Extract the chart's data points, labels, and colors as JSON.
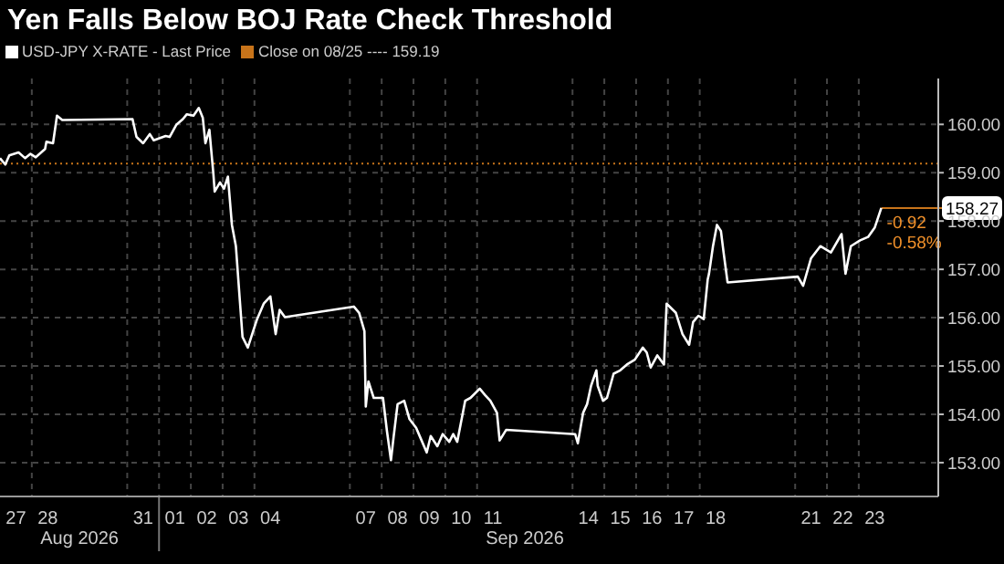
{
  "chart_data": {
    "type": "line",
    "title": "Yen Falls Below BOJ Rate Check Threshold",
    "x": [
      "2026-08-27T00:00",
      "2026-08-27T04:00",
      "2026-08-27T07:00",
      "2026-08-27T14:00",
      "2026-08-27T19:00",
      "2026-08-27T23:00",
      "2026-08-28T03:00",
      "2026-08-28T10:00",
      "2026-08-28T11:00",
      "2026-08-28T16:00",
      "2026-08-28T19:00",
      "2026-08-28T23:00",
      "2026-08-31T04:00",
      "2026-08-31T07:00",
      "2026-08-31T12:00",
      "2026-08-31T17:00",
      "2026-08-31T20:00",
      "2026-09-01T05:00",
      "2026-09-01T08:00",
      "2026-09-01T13:00",
      "2026-09-01T18:00",
      "2026-09-01T21:00",
      "2026-09-02T02:00",
      "2026-09-02T06:00",
      "2026-09-02T09:00",
      "2026-09-02T11:00",
      "2026-09-02T14:00",
      "2026-09-02T17:00",
      "2026-09-02T18:00",
      "2026-09-02T22:00",
      "2026-09-03T01:00",
      "2026-09-03T04:00",
      "2026-09-03T07:00",
      "2026-09-03T10:00",
      "2026-09-03T13:00",
      "2026-09-03T15:00",
      "2026-09-03T19:00",
      "2026-09-03T23:00",
      "2026-09-04T02:00",
      "2026-09-04T07:00",
      "2026-09-04T12:00",
      "2026-09-04T16:00",
      "2026-09-04T19:00",
      "2026-09-04T23:00",
      "2026-09-07T03:00",
      "2026-09-07T07:00",
      "2026-09-07T11:00",
      "2026-09-07T12:00",
      "2026-09-07T14:00",
      "2026-09-07T18:00",
      "2026-09-08T01:00",
      "2026-09-08T04:00",
      "2026-09-08T07:00",
      "2026-09-08T09:00",
      "2026-09-08T12:00",
      "2026-09-08T17:00",
      "2026-09-08T21:00",
      "2026-09-09T02:00",
      "2026-09-09T05:00",
      "2026-09-09T10:00",
      "2026-09-09T13:00",
      "2026-09-09T18:00",
      "2026-09-09T22:00",
      "2026-09-10T03:00",
      "2026-09-10T06:00",
      "2026-09-10T09:00",
      "2026-09-10T15:00",
      "2026-09-10T19:00",
      "2026-09-11T02:00",
      "2026-09-11T06:00",
      "2026-09-11T10:00",
      "2026-09-11T15:00",
      "2026-09-11T17:00",
      "2026-09-11T22:00",
      "2026-09-14T02:00",
      "2026-09-14T04:00",
      "2026-09-14T08:00",
      "2026-09-14T11:00",
      "2026-09-14T14:00",
      "2026-09-14T18:00",
      "2026-09-14T19:00",
      "2026-09-14T23:00",
      "2026-09-15T02:00",
      "2026-09-15T07:00",
      "2026-09-15T12:00",
      "2026-09-15T17:00",
      "2026-09-15T23:00",
      "2026-09-16T05:00",
      "2026-09-16T08:00",
      "2026-09-16T11:00",
      "2026-09-16T16:00",
      "2026-09-16T21:00",
      "2026-09-16T23:00",
      "2026-09-17T06:00",
      "2026-09-17T11:00",
      "2026-09-17T16:00",
      "2026-09-17T19:00",
      "2026-09-17T23:00",
      "2026-09-18T03:00",
      "2026-09-18T06:00",
      "2026-09-18T07:00",
      "2026-09-18T10:00",
      "2026-09-18T13:00",
      "2026-09-18T16:00",
      "2026-09-18T18:00",
      "2026-09-18T21:00",
      "2026-09-21T02:00",
      "2026-09-21T06:00",
      "2026-09-21T12:00",
      "2026-09-21T19:00",
      "2026-09-22T03:00",
      "2026-09-22T11:00",
      "2026-09-22T14:00",
      "2026-09-22T18:00",
      "2026-09-23T01:00",
      "2026-09-23T07:00",
      "2026-09-23T12:00",
      "2026-09-23T17:00"
    ],
    "series": [
      {
        "name": "USD-JPY X-RATE - Last Price",
        "color": "#ffffff",
        "values": [
          159.3,
          159.17,
          159.36,
          159.42,
          159.3,
          159.39,
          159.32,
          159.49,
          159.64,
          159.61,
          160.18,
          160.09,
          160.11,
          159.74,
          159.61,
          159.8,
          159.67,
          159.76,
          159.74,
          159.99,
          160.11,
          160.21,
          160.18,
          160.34,
          160.14,
          159.61,
          159.89,
          158.98,
          158.61,
          158.8,
          158.67,
          158.92,
          157.92,
          157.48,
          156.35,
          155.6,
          155.38,
          155.72,
          155.97,
          156.29,
          156.44,
          155.66,
          156.16,
          156.01,
          156.23,
          156.1,
          155.72,
          154.16,
          154.68,
          154.34,
          154.34,
          153.65,
          153.05,
          153.53,
          154.21,
          154.28,
          153.9,
          153.72,
          153.53,
          153.21,
          153.55,
          153.34,
          153.59,
          153.43,
          153.59,
          153.43,
          154.28,
          154.34,
          154.53,
          154.4,
          154.28,
          154.03,
          153.46,
          153.68,
          153.59,
          153.4,
          154.03,
          154.21,
          154.59,
          154.91,
          154.59,
          154.28,
          154.34,
          154.84,
          154.91,
          155.03,
          155.13,
          155.38,
          155.28,
          154.97,
          155.22,
          155.03,
          156.29,
          156.1,
          155.66,
          155.44,
          155.91,
          156.04,
          155.97,
          156.79,
          156.91,
          157.48,
          157.92,
          157.79,
          157.35,
          156.73,
          156.85,
          156.66,
          157.23,
          157.48,
          157.35,
          157.73,
          156.91,
          157.48,
          157.6,
          157.67,
          157.86,
          158.27
        ],
        "value_labels": [
          null,
          null,
          null,
          null,
          null,
          null,
          null,
          null,
          null,
          null,
          null,
          null,
          null,
          null,
          null,
          null,
          null,
          null,
          null,
          null,
          null,
          null,
          null,
          null,
          null,
          null,
          null,
          null,
          null,
          null,
          null,
          null,
          null,
          null,
          null,
          null,
          null,
          null,
          null,
          null,
          null,
          null,
          null,
          null,
          null,
          null,
          null,
          null,
          null,
          null,
          null,
          null,
          null,
          null,
          null,
          null,
          null,
          null,
          null,
          null,
          null,
          null,
          null,
          null,
          null,
          null,
          null,
          null,
          null,
          null,
          null,
          null,
          null,
          null,
          null,
          null,
          null,
          null,
          null,
          null,
          null,
          null,
          null,
          null,
          null,
          null,
          null,
          null,
          null,
          null,
          null,
          null,
          null,
          null,
          null,
          null,
          null,
          null,
          null,
          null,
          null,
          null,
          null,
          null,
          null,
          null,
          null,
          null,
          null,
          null,
          null,
          null,
          null,
          null,
          null,
          null,
          null,
          "158.27"
        ]
      }
    ],
    "xlim": [
      "2026-08-27T00:00",
      "2026-09-25T12:00"
    ],
    "xticks": [
      {
        "value": "2026-08-27T12:00",
        "label": "27"
      },
      {
        "value": "2026-08-28T00:00",
        "label": null
      },
      {
        "value": "2026-08-28T12:00",
        "label": "28"
      },
      {
        "value": "2026-08-31T00:00",
        "label": null
      },
      {
        "value": "2026-08-31T12:00",
        "label": "31"
      },
      {
        "value": "2026-09-01T00:00",
        "label": null
      },
      {
        "value": "2026-09-01T12:00",
        "label": "01"
      },
      {
        "value": "2026-09-02T00:00",
        "label": null
      },
      {
        "value": "2026-09-02T12:00",
        "label": "02"
      },
      {
        "value": "2026-09-03T00:00",
        "label": null
      },
      {
        "value": "2026-09-03T12:00",
        "label": "03"
      },
      {
        "value": "2026-09-04T00:00",
        "label": null
      },
      {
        "value": "2026-09-04T12:00",
        "label": "04"
      },
      {
        "value": "2026-09-07T00:00",
        "label": null
      },
      {
        "value": "2026-09-07T12:00",
        "label": "07"
      },
      {
        "value": "2026-09-08T00:00",
        "label": null
      },
      {
        "value": "2026-09-08T12:00",
        "label": "08"
      },
      {
        "value": "2026-09-09T00:00",
        "label": null
      },
      {
        "value": "2026-09-09T12:00",
        "label": "09"
      },
      {
        "value": "2026-09-10T00:00",
        "label": null
      },
      {
        "value": "2026-09-10T12:00",
        "label": "10"
      },
      {
        "value": "2026-09-11T00:00",
        "label": null
      },
      {
        "value": "2026-09-11T12:00",
        "label": "11"
      },
      {
        "value": "2026-09-14T00:00",
        "label": null
      },
      {
        "value": "2026-09-14T12:00",
        "label": "14"
      },
      {
        "value": "2026-09-15T00:00",
        "label": null
      },
      {
        "value": "2026-09-15T12:00",
        "label": "15"
      },
      {
        "value": "2026-09-16T00:00",
        "label": null
      },
      {
        "value": "2026-09-16T12:00",
        "label": "16"
      },
      {
        "value": "2026-09-17T00:00",
        "label": null
      },
      {
        "value": "2026-09-17T12:00",
        "label": "17"
      },
      {
        "value": "2026-09-18T00:00",
        "label": null
      },
      {
        "value": "2026-09-18T12:00",
        "label": "18"
      },
      {
        "value": "2026-09-21T00:00",
        "label": null
      },
      {
        "value": "2026-09-21T12:00",
        "label": "21"
      },
      {
        "value": "2026-09-22T00:00",
        "label": null
      },
      {
        "value": "2026-09-22T12:00",
        "label": "22"
      },
      {
        "value": "2026-09-23T00:00",
        "label": null
      },
      {
        "value": "2026-09-23T12:00",
        "label": "23"
      }
    ],
    "ylim": [
      152.3,
      160.95
    ],
    "yticks": [
      {
        "value": 153,
        "label": "153.00"
      },
      {
        "value": 154,
        "label": "154.00"
      },
      {
        "value": 155,
        "label": "155.00"
      },
      {
        "value": 156,
        "label": "156.00"
      },
      {
        "value": 157,
        "label": "157.00"
      },
      {
        "value": 158,
        "label": "158.00"
      },
      {
        "value": 159,
        "label": "159.00"
      },
      {
        "value": 160,
        "label": "160.00"
      }
    ],
    "ref_lines": [
      {
        "axis": "y",
        "value": 159.19,
        "label": "Close on 08/25 ---- 159.19",
        "color": "#c8741a",
        "line_style": "dotted"
      }
    ],
    "annotations": [
      "Aug 2026",
      "Sep 2026",
      "-0.92",
      "-0.58%"
    ],
    "grid": true,
    "legend": "top left",
    "marker": "none",
    "line_style": "solid"
  }
}
